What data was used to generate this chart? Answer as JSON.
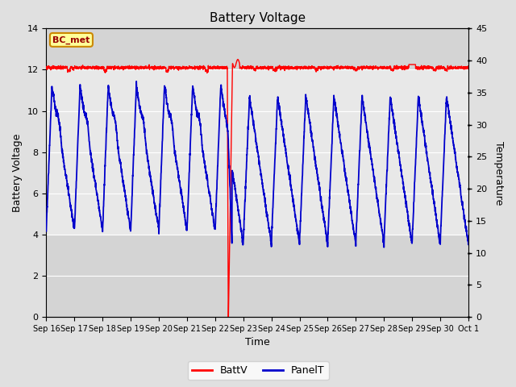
{
  "title": "Battery Voltage",
  "xlabel": "Time",
  "ylabel_left": "Battery Voltage",
  "ylabel_right": "Temperature",
  "ylim_left": [
    0,
    14
  ],
  "ylim_right": [
    0,
    45
  ],
  "yticks_left": [
    0,
    2,
    4,
    6,
    8,
    10,
    12,
    14
  ],
  "yticks_right": [
    0,
    5,
    10,
    15,
    20,
    25,
    30,
    35,
    40,
    45
  ],
  "background_color": "#e0e0e0",
  "plot_bg_color": "#d4d4d4",
  "inner_bg_color": "#e8e8e8",
  "grid_color": "#ffffff",
  "batt_color": "#ff0000",
  "panel_color": "#0000cc",
  "annotation_text": "BC_met",
  "annotation_bg": "#ffff99",
  "annotation_border": "#cc8800",
  "x_tick_labels": [
    "Sep 16",
    "Sep 17",
    "Sep 18",
    "Sep 19",
    "Sep 20",
    "Sep 21",
    "Sep 22",
    "Sep 23",
    "Sep 24",
    "Sep 25",
    "Sep 26",
    "Sep 27",
    "Sep 28",
    "Sep 29",
    "Sep 30",
    "Oct 1"
  ],
  "x_tick_positions": [
    0,
    1,
    2,
    3,
    4,
    5,
    6,
    7,
    8,
    9,
    10,
    11,
    12,
    13,
    14,
    15
  ],
  "gap_x": 6.45,
  "legend_labels": [
    "BattV",
    "PanelT"
  ],
  "figsize": [
    6.4,
    4.8
  ],
  "dpi": 100
}
